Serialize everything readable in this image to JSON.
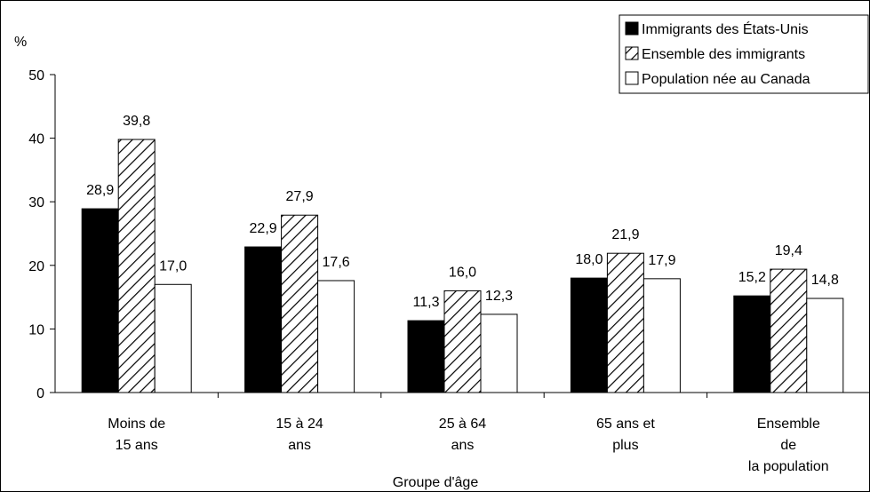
{
  "chart_data": {
    "type": "bar",
    "ylabel": "%",
    "xlabel": "Groupe d'âge",
    "ylim": [
      0,
      50
    ],
    "yticks": [
      0,
      10,
      20,
      30,
      40,
      50
    ],
    "grid": false,
    "legend_position": "top-right",
    "categories": [
      [
        "Moins de",
        "15 ans"
      ],
      [
        "15 à 24",
        "ans"
      ],
      [
        "25 à 64",
        "ans"
      ],
      [
        "65 ans et",
        "plus"
      ],
      [
        "Ensemble",
        "de",
        "la population"
      ]
    ],
    "series": [
      {
        "name": "Immigrants des États-Unis",
        "fill": "solid-black",
        "values": [
          28.9,
          22.9,
          11.3,
          18.0,
          15.2
        ],
        "labels": [
          "28,9",
          "22,9",
          "11,3",
          "18,0",
          "15,2"
        ]
      },
      {
        "name": "Ensemble des immigrants",
        "fill": "hatched",
        "values": [
          39.8,
          27.9,
          16.0,
          21.9,
          19.4
        ],
        "labels": [
          "39,8",
          "27,9",
          "16,0",
          "21,9",
          "19,4"
        ]
      },
      {
        "name": "Population née au Canada",
        "fill": "white",
        "values": [
          17.0,
          17.6,
          12.3,
          17.9,
          14.8
        ],
        "labels": [
          "17,0",
          "17,6",
          "12,3",
          "17,9",
          "14,8"
        ]
      }
    ]
  },
  "colors": {
    "black": "#000000",
    "white": "#ffffff"
  }
}
